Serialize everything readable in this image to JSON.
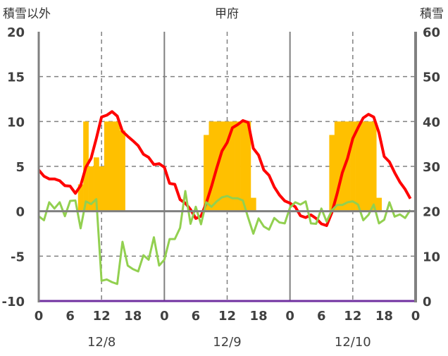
{
  "chart_data": {
    "type": "line+bar",
    "title": "甲府",
    "left_axis_label": "積雪以外",
    "right_axis_label": "積雪",
    "left_ylim": [
      -10,
      20
    ],
    "left_ticks": [
      20,
      15,
      10,
      5,
      0,
      -5,
      -10
    ],
    "right_ylim": [
      0,
      60
    ],
    "right_ticks": [
      60,
      50,
      40,
      30,
      20,
      10,
      0
    ],
    "x_ticks": [
      "0",
      "6",
      "12",
      "18",
      "0",
      "6",
      "12",
      "18",
      "0",
      "6",
      "12",
      "18",
      "0"
    ],
    "date_labels": [
      "12/8",
      "12/9",
      "12/10"
    ],
    "hours_total": 72,
    "grid": true,
    "colors": {
      "temperature": "#FF0000",
      "green_series": "#92D050",
      "snow_depth": "#FFC000",
      "purple_series": "#7030A0",
      "axis": "#808080"
    },
    "series": [
      {
        "name": "red",
        "axis": "left",
        "type": "line",
        "values": [
          4.6,
          3.9,
          3.6,
          3.6,
          3.4,
          2.85,
          2.8,
          2.0,
          2.85,
          4.9,
          5.9,
          8.1,
          10.5,
          10.7,
          11.1,
          10.6,
          8.9,
          8.35,
          7.85,
          7.3,
          6.35,
          6.0,
          5.2,
          5.3,
          4.9,
          3.1,
          3.0,
          1.3,
          0.9,
          0.2,
          -0.8,
          -0.55,
          0.9,
          2.75,
          4.8,
          6.7,
          7.65,
          9.3,
          9.65,
          10.1,
          9.9,
          7.0,
          6.25,
          4.6,
          4.0,
          2.7,
          1.8,
          1.15,
          0.9,
          0.5,
          -0.5,
          -0.7,
          -0.4,
          -0.8,
          -1.4,
          -1.6,
          -0.15,
          1.95,
          4.3,
          5.9,
          8.1,
          9.3,
          10.4,
          10.8,
          10.5,
          8.75,
          6.1,
          5.5,
          4.3,
          3.25,
          2.45,
          1.4
        ]
      },
      {
        "name": "green",
        "axis": "left",
        "type": "line",
        "values": [
          -0.55,
          -1.0,
          1.0,
          0.3,
          1.0,
          -0.55,
          1.15,
          1.2,
          -1.9,
          1.1,
          0.8,
          1.35,
          -7.75,
          -7.6,
          -7.9,
          -8.1,
          -3.4,
          -6.05,
          -6.45,
          -6.7,
          -4.9,
          -5.4,
          -2.9,
          -6.05,
          -5.4,
          -3.1,
          -3.1,
          -1.85,
          2.25,
          -1.4,
          0.5,
          -1.45,
          1.0,
          0.5,
          1.1,
          1.55,
          1.7,
          1.45,
          1.45,
          1.2,
          -0.7,
          -2.5,
          -0.8,
          -1.7,
          -2.05,
          -0.75,
          -1.25,
          -1.35,
          0.4,
          1.0,
          0.75,
          1.1,
          -1.35,
          -1.4,
          0.3,
          -1.15,
          0.1,
          0.7,
          0.7,
          1.0,
          1.1,
          0.75,
          -1.0,
          -0.4,
          0.75,
          -1.35,
          -0.95,
          1.0,
          -0.6,
          -0.35,
          -0.75,
          0.15
        ]
      },
      {
        "name": "purple",
        "axis": "left",
        "type": "line",
        "values": [
          -10,
          -10
        ]
      },
      {
        "name": "積雪",
        "axis": "right",
        "type": "bar",
        "base": 20,
        "points": [
          [
            8,
            26
          ],
          [
            9,
            40
          ],
          [
            10,
            30
          ],
          [
            11,
            32
          ],
          [
            12,
            30
          ],
          [
            13,
            40
          ],
          [
            14,
            40
          ],
          [
            15,
            40
          ],
          [
            16,
            38
          ],
          [
            32,
            37
          ],
          [
            33,
            40
          ],
          [
            34,
            40
          ],
          [
            35,
            40
          ],
          [
            36,
            40
          ],
          [
            37,
            40
          ],
          [
            38,
            40
          ],
          [
            39,
            40
          ],
          [
            40,
            40
          ],
          [
            41,
            23
          ],
          [
            56,
            37
          ],
          [
            57,
            40
          ],
          [
            58,
            40
          ],
          [
            59,
            40
          ],
          [
            60,
            40
          ],
          [
            61,
            40
          ],
          [
            62,
            40
          ],
          [
            63,
            40
          ],
          [
            64,
            40
          ],
          [
            65,
            23
          ]
        ]
      }
    ]
  }
}
